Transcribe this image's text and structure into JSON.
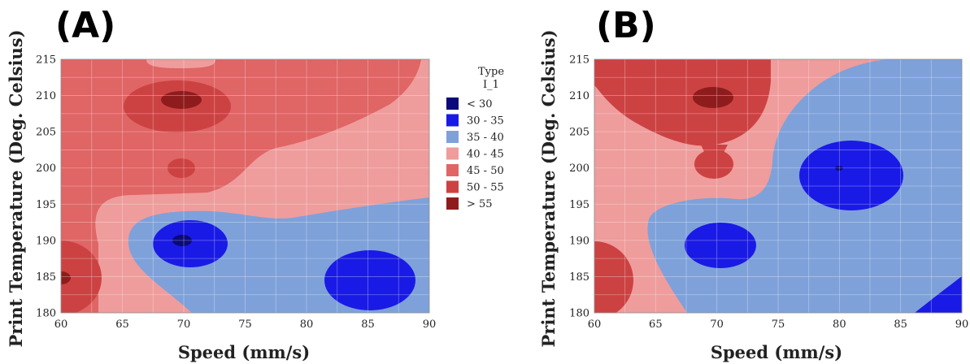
{
  "chart_data": [
    {
      "type": "heatmap",
      "panel_label": "(A)",
      "title": "",
      "xlabel": "Speed (mm/s)",
      "ylabel": "Print Temperature (Deg. Celsius)",
      "xlim": [
        60,
        90
      ],
      "ylim": [
        180,
        215
      ],
      "xticks": [
        60,
        65,
        70,
        75,
        80,
        85,
        90
      ],
      "yticks": [
        180,
        185,
        190,
        195,
        200,
        205,
        210,
        215
      ],
      "grid": true,
      "regions": [
        {
          "level": "45 - 50",
          "shape": "background",
          "x": [
            60,
            90
          ],
          "y": [
            180,
            215
          ]
        },
        {
          "level": "40 - 45",
          "shape": "band",
          "description_points": [
            [
              60,
              180
            ],
            [
              65,
              180
            ],
            [
              66,
              188
            ],
            [
              68,
              194
            ],
            [
              78,
              196
            ],
            [
              90,
              204
            ],
            [
              90,
              180
            ]
          ]
        },
        {
          "level": "35 - 40",
          "shape": "region",
          "points": [
            [
              66,
              188
            ],
            [
              68,
              194
            ],
            [
              90,
              196
            ],
            [
              90,
              180
            ],
            [
              70,
              180
            ]
          ]
        },
        {
          "level": "50 - 55",
          "shape": "blob",
          "center": [
            70,
            208.5
          ]
        },
        {
          "level": "> 55",
          "shape": "blob",
          "center": [
            70,
            209.5
          ]
        },
        {
          "level": "50 - 55",
          "shape": "blob",
          "center": [
            70,
            200
          ]
        },
        {
          "level": "30 - 35",
          "shape": "blob",
          "center": [
            70,
            189.5
          ]
        },
        {
          "level": "< 30",
          "shape": "blob",
          "center": [
            70,
            190
          ]
        },
        {
          "level": "30 - 35",
          "shape": "blob",
          "center": [
            85,
            185
          ]
        },
        {
          "level": "50 - 55",
          "shape": "blob",
          "center": [
            60,
            185
          ]
        },
        {
          "level": "> 55",
          "shape": "blob",
          "center": [
            60,
            185
          ]
        }
      ]
    },
    {
      "type": "heatmap",
      "panel_label": "(B)",
      "title": "",
      "xlabel": "Speed (mm/s)",
      "ylabel": "Print Temperature (Deg. Celsius)",
      "xlim": [
        60,
        90
      ],
      "ylim": [
        180,
        215
      ],
      "xticks": [
        60,
        65,
        70,
        75,
        80,
        85,
        90
      ],
      "yticks": [
        180,
        185,
        190,
        195,
        200,
        205,
        210,
        215
      ],
      "grid": true,
      "regions": [
        {
          "level": "40 - 45",
          "shape": "background",
          "x": [
            60,
            90
          ],
          "y": [
            180,
            215
          ]
        },
        {
          "level": "35 - 40",
          "shape": "region",
          "center": [
            80,
            195
          ]
        },
        {
          "level": "50 - 55",
          "shape": "blob",
          "center": [
            70,
            210
          ]
        },
        {
          "level": "> 55",
          "shape": "blob",
          "center": [
            70,
            209.5
          ]
        },
        {
          "level": "50 - 55",
          "shape": "blob",
          "center": [
            70,
            200.5
          ]
        },
        {
          "level": "30 - 35",
          "shape": "blob",
          "center": [
            80.5,
            199.5
          ]
        },
        {
          "level": "< 30",
          "shape": "blob",
          "center": [
            80,
            200
          ]
        },
        {
          "level": "30 - 35",
          "shape": "blob",
          "center": [
            70.5,
            189.5
          ]
        },
        {
          "level": "50 - 55",
          "shape": "blob",
          "center": [
            60,
            184
          ]
        },
        {
          "level": "30 - 35",
          "shape": "blob",
          "center": [
            90,
            182
          ]
        }
      ]
    }
  ],
  "legend": {
    "title_line1": "Type",
    "title_line2": "I_1",
    "placement": "right-of-panel-A",
    "items": [
      {
        "label": "< 30",
        "color": "#0a0a78"
      },
      {
        "label": "30 - 35",
        "color": "#1a1ae6"
      },
      {
        "label": "35 - 40",
        "color": "#7ea1da"
      },
      {
        "label": "40 - 45",
        "color": "#ef9c9c"
      },
      {
        "label": "45 - 50",
        "color": "#e06565"
      },
      {
        "label": "50 - 55",
        "color": "#cc4242"
      },
      {
        "label": "> 55",
        "color": "#8f1c1c"
      }
    ]
  }
}
